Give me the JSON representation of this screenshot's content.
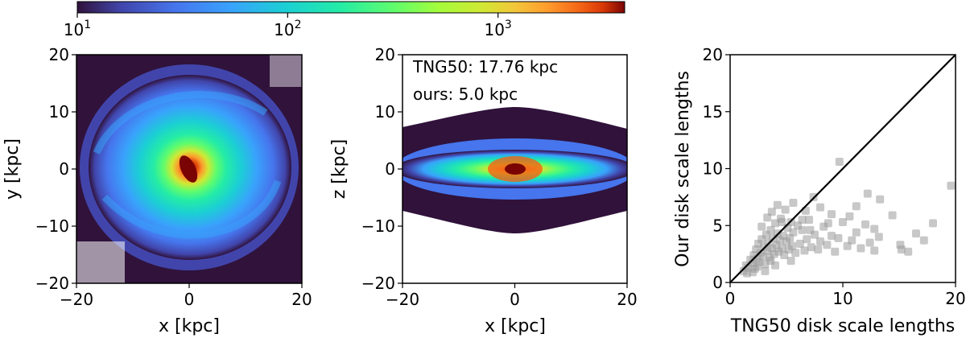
{
  "colorbar": {
    "scale": "log",
    "range": [
      10,
      4000
    ],
    "colormap": "turbo",
    "ticks": [
      {
        "value": 10,
        "base": "10",
        "exp": "1"
      },
      {
        "value": 100,
        "base": "10",
        "exp": "2"
      },
      {
        "value": 1000,
        "base": "10",
        "exp": "3"
      }
    ]
  },
  "chart_data": [
    {
      "type": "heatmap",
      "title": "",
      "xlabel": "x [kpc]",
      "ylabel": "y [kpc]",
      "xlim": [
        -20,
        20
      ],
      "ylim": [
        -20,
        20
      ],
      "xticks": [
        "−20",
        "0",
        "20"
      ],
      "yticks": [
        "−20",
        "−10",
        "0",
        "10",
        "20"
      ],
      "description_values": {
        "peak_x": 0,
        "peak_y": 0,
        "bar_angle_deg": 65
      }
    },
    {
      "type": "heatmap",
      "title": "",
      "xlabel": "x [kpc]",
      "ylabel": "z [kpc]",
      "xlim": [
        -20,
        20
      ],
      "ylim": [
        -20,
        20
      ],
      "xticks": [
        "−20",
        "0",
        "20"
      ],
      "yticks": [
        "−20",
        "−10",
        "0",
        "10",
        "20"
      ],
      "annotations": [
        "TNG50: 17.76 kpc",
        "ours: 5.0 kpc"
      ]
    },
    {
      "type": "scatter",
      "title": "",
      "xlabel": "TNG50 disk scale lengths",
      "ylabel": "Our disk scale lengths",
      "xlim": [
        0,
        20
      ],
      "ylim": [
        0,
        20
      ],
      "xticks": [
        "0",
        "10",
        "20"
      ],
      "yticks": [
        "0",
        "5",
        "10",
        "15",
        "20"
      ],
      "marker_color": "#9a9a9a",
      "reference_line": {
        "x": [
          0,
          20
        ],
        "y": [
          0,
          20
        ],
        "color": "#000000"
      },
      "points": [
        [
          1.2,
          1.0
        ],
        [
          1.4,
          1.5
        ],
        [
          1.6,
          1.3
        ],
        [
          1.8,
          2.0
        ],
        [
          2.0,
          1.7
        ],
        [
          2.1,
          2.4
        ],
        [
          2.2,
          1.2
        ],
        [
          2.3,
          2.9
        ],
        [
          2.4,
          2.1
        ],
        [
          2.5,
          3.4
        ],
        [
          2.6,
          1.8
        ],
        [
          2.7,
          2.6
        ],
        [
          2.8,
          3.8
        ],
        [
          2.9,
          2.3
        ],
        [
          3.0,
          3.1
        ],
        [
          3.1,
          1.6
        ],
        [
          3.2,
          4.2
        ],
        [
          3.3,
          2.8
        ],
        [
          3.4,
          3.5
        ],
        [
          3.5,
          2.2
        ],
        [
          3.6,
          4.6
        ],
        [
          3.7,
          3.0
        ],
        [
          3.8,
          3.9
        ],
        [
          3.9,
          2.5
        ],
        [
          4.0,
          5.2
        ],
        [
          4.1,
          3.3
        ],
        [
          4.2,
          4.3
        ],
        [
          4.3,
          2.7
        ],
        [
          4.4,
          3.7
        ],
        [
          4.5,
          5.6
        ],
        [
          4.6,
          3.0
        ],
        [
          4.7,
          4.1
        ],
        [
          4.8,
          2.4
        ],
        [
          4.9,
          6.4
        ],
        [
          5.0,
          3.6
        ],
        [
          5.1,
          4.8
        ],
        [
          5.2,
          2.9
        ],
        [
          5.3,
          3.9
        ],
        [
          5.4,
          5.3
        ],
        [
          5.5,
          3.2
        ],
        [
          5.6,
          4.4
        ],
        [
          5.8,
          2.6
        ],
        [
          6.0,
          5.0
        ],
        [
          6.2,
          3.4
        ],
        [
          6.4,
          4.6
        ],
        [
          6.6,
          2.8
        ],
        [
          6.8,
          3.8
        ],
        [
          7.0,
          5.5
        ],
        [
          7.2,
          3.1
        ],
        [
          7.5,
          4.2
        ],
        [
          7.8,
          2.9
        ],
        [
          8.0,
          3.6
        ],
        [
          8.3,
          4.9
        ],
        [
          8.6,
          3.3
        ],
        [
          9.0,
          4.1
        ],
        [
          9.3,
          2.7
        ],
        [
          9.6,
          3.9
        ],
        [
          10.0,
          5.3
        ],
        [
          10.4,
          3.2
        ],
        [
          10.8,
          3.7
        ],
        [
          11.2,
          4.4
        ],
        [
          11.6,
          3.0
        ],
        [
          12.0,
          5.1
        ],
        [
          12.4,
          3.5
        ],
        [
          12.8,
          2.8
        ],
        [
          13.2,
          4.0
        ],
        [
          15.2,
          2.9
        ],
        [
          15.8,
          2.7
        ],
        [
          16.5,
          4.3
        ],
        [
          18.0,
          5.2
        ],
        [
          19.6,
          8.5
        ],
        [
          9.7,
          10.6
        ],
        [
          12.2,
          7.8
        ],
        [
          13.3,
          7.3
        ],
        [
          7.4,
          7.5
        ],
        [
          5.6,
          7.0
        ],
        [
          11.2,
          6.7
        ],
        [
          8.0,
          6.6
        ],
        [
          4.2,
          6.8
        ],
        [
          3.7,
          6.2
        ],
        [
          6.7,
          6.3
        ],
        [
          9.0,
          6.0
        ],
        [
          14.4,
          5.9
        ],
        [
          10.6,
          5.8
        ],
        [
          4.6,
          5.3
        ],
        [
          15.1,
          3.3
        ],
        [
          1.5,
          0.8
        ],
        [
          2.0,
          0.9
        ],
        [
          2.4,
          1.4
        ],
        [
          3.1,
          1.0
        ],
        [
          3.6,
          1.9
        ],
        [
          4.0,
          1.5
        ],
        [
          5.4,
          1.9
        ],
        [
          2.8,
          4.9
        ],
        [
          3.3,
          5.7
        ],
        [
          6.4,
          5.5
        ],
        [
          7.1,
          4.6
        ],
        [
          8.7,
          5.2
        ],
        [
          12.8,
          4.7
        ],
        [
          17.2,
          3.7
        ]
      ]
    }
  ]
}
